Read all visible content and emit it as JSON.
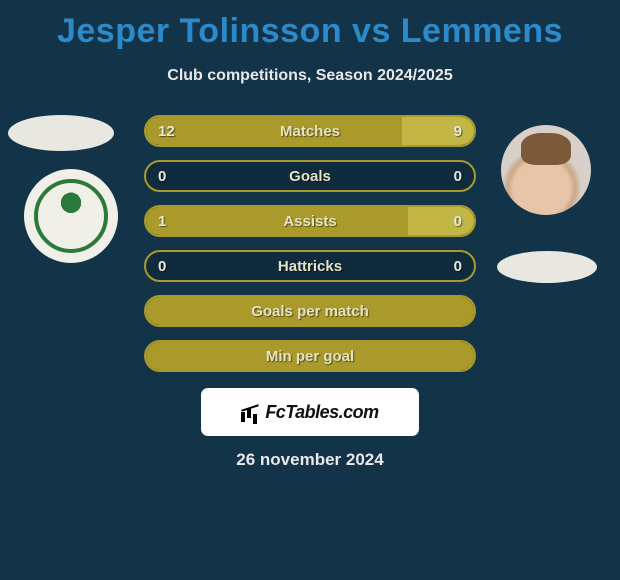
{
  "title": "Jesper Tolinsson vs Lemmens",
  "subtitle": "Club competitions, Season 2024/2025",
  "date": "26 november 2024",
  "branding": "FcTables.com",
  "colors": {
    "background": "#133349",
    "accent": "#2d8aca",
    "bar_primary": "#a99a2b",
    "bar_secondary": "#c2b645",
    "text_light": "#e8e8e8"
  },
  "stats": [
    {
      "label": "Matches",
      "left_val": "12",
      "right_val": "9",
      "left_pct": 78,
      "right_pct": 22,
      "show_values": true
    },
    {
      "label": "Goals",
      "left_val": "0",
      "right_val": "0",
      "left_pct": 0,
      "right_pct": 0,
      "show_values": true
    },
    {
      "label": "Assists",
      "left_val": "1",
      "right_val": "0",
      "left_pct": 80,
      "right_pct": 20,
      "show_values": true
    },
    {
      "label": "Hattricks",
      "left_val": "0",
      "right_val": "0",
      "left_pct": 0,
      "right_pct": 0,
      "show_values": true
    },
    {
      "label": "Goals per match",
      "left_val": "",
      "right_val": "",
      "left_pct": 100,
      "right_pct": 0,
      "show_values": false
    },
    {
      "label": "Min per goal",
      "left_val": "",
      "right_val": "",
      "left_pct": 100,
      "right_pct": 0,
      "show_values": false
    }
  ]
}
